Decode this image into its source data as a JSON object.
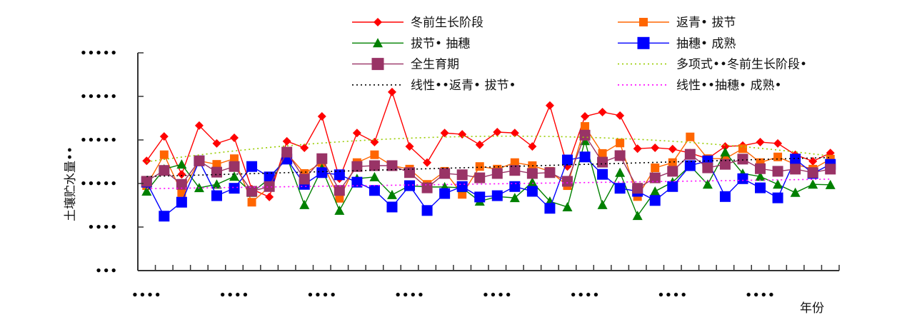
{
  "chart_data": {
    "type": "line",
    "title": "",
    "xlabel": "年份",
    "ylabel": "土壤贮水量••",
    "ylim": [
      0,
      5
    ],
    "y_tick_labels": [
      "•••",
      "••••",
      "•••••",
      "•••••",
      "•••••",
      "•••••"
    ],
    "x_tick_labels": [
      "••••",
      "••••",
      "••••",
      "••••",
      "••••",
      "••••",
      "••••",
      "••••"
    ],
    "grid": false,
    "legend_position": "top",
    "series": [
      {
        "name": "冬前生长阶段",
        "color": "#FF0000",
        "marker": "diamond",
        "values": [
          2.52,
          3.08,
          2.21,
          3.33,
          2.92,
          3.05,
          1.87,
          1.69,
          2.97,
          2.82,
          3.54,
          2.11,
          3.16,
          2.95,
          4.1,
          2.85,
          2.48,
          3.16,
          3.13,
          2.89,
          3.18,
          3.16,
          2.85,
          3.79,
          2.39,
          3.54,
          3.64,
          3.56,
          2.8,
          2.82,
          2.79,
          2.7,
          2.57,
          2.85,
          2.87,
          2.95,
          2.92,
          2.66,
          2.51,
          2.7
        ]
      },
      {
        "name": "返青•  拔节",
        "color": "#FF6600",
        "marker": "square",
        "values": [
          1.95,
          2.66,
          1.79,
          2.52,
          2.44,
          2.57,
          1.57,
          1.92,
          2.69,
          2.23,
          2.48,
          1.66,
          2.48,
          2.66,
          2.41,
          2.33,
          1.98,
          2.28,
          1.75,
          2.39,
          2.33,
          2.48,
          2.41,
          2.28,
          1.95,
          3.31,
          2.69,
          2.93,
          1.7,
          2.36,
          2.48,
          3.07,
          2.57,
          2.57,
          2.8,
          2.48,
          2.61,
          2.44,
          2.33,
          2.56
        ]
      },
      {
        "name": "拔节•  抽穗",
        "color": "#008000",
        "marker": "triangle",
        "values": [
          1.82,
          2.33,
          2.44,
          1.9,
          1.98,
          2.16,
          1.79,
          2.11,
          2.61,
          1.51,
          2.34,
          1.38,
          2.11,
          2.15,
          1.74,
          1.95,
          1.92,
          1.92,
          1.9,
          1.59,
          1.7,
          1.67,
          2.03,
          1.59,
          1.46,
          2.98,
          1.51,
          2.25,
          1.26,
          1.82,
          2.03,
          2.41,
          1.98,
          2.72,
          2.23,
          2.16,
          1.98,
          1.79,
          1.98,
          1.97
        ]
      },
      {
        "name": "抽穗•  成熟",
        "color": "#0000FF",
        "marker": "square-large",
        "values": [
          2.03,
          1.25,
          1.57,
          2.52,
          1.72,
          1.89,
          2.39,
          2.15,
          2.56,
          1.98,
          2.25,
          2.2,
          2.03,
          1.84,
          1.46,
          1.95,
          1.38,
          1.77,
          1.93,
          1.69,
          1.72,
          1.93,
          1.82,
          1.43,
          2.54,
          2.61,
          2.21,
          1.89,
          1.82,
          1.61,
          1.93,
          2.41,
          2.52,
          1.7,
          2.11,
          1.9,
          1.67,
          2.56,
          2.23,
          2.44
        ]
      },
      {
        "name": "全生育期",
        "color": "#993366",
        "marker": "square-large",
        "values": [
          2.05,
          2.3,
          1.98,
          2.52,
          2.26,
          2.39,
          1.82,
          1.93,
          2.72,
          2.1,
          2.57,
          1.84,
          2.39,
          2.41,
          2.41,
          2.25,
          1.9,
          2.23,
          2.2,
          2.13,
          2.23,
          2.3,
          2.23,
          2.25,
          2.05,
          3.11,
          2.49,
          2.64,
          1.89,
          2.13,
          2.28,
          2.67,
          2.36,
          2.44,
          2.56,
          2.34,
          2.28,
          2.33,
          2.25,
          2.33
        ]
      }
    ],
    "trendlines": [
      {
        "name": "多项式••冬前生长阶段•",
        "color": "#99CC00",
        "type": "polynomial",
        "order": 2,
        "of_series": 0
      },
      {
        "name": "线性••返青•  拔节•",
        "color": "#000000",
        "type": "linear",
        "of_series": 1
      },
      {
        "name": "线性••抽穗•  成熟•",
        "color": "#FF00FF",
        "type": "linear",
        "of_series": 3
      }
    ]
  }
}
